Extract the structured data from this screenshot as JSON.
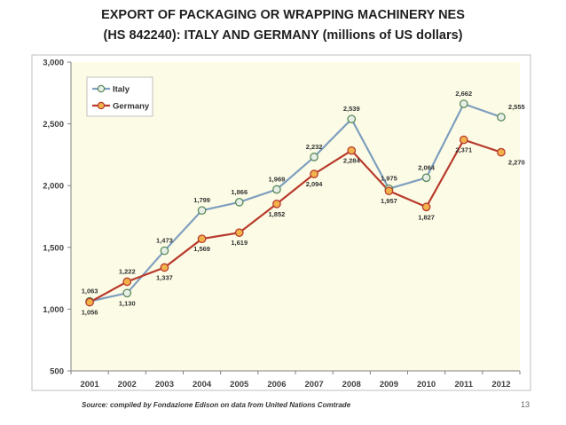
{
  "title_line1": "EXPORT OF PACKAGING OR WRAPPING MACHINERY NES",
  "title_line2": "(HS 842240): ITALY AND GERMANY (millions of US dollars)",
  "source": "Source: compiled by Fondazione Edison on data from United Nations Comtrade",
  "page_number": "13",
  "chart_data": {
    "type": "line",
    "categories": [
      "2001",
      "2002",
      "2003",
      "2004",
      "2005",
      "2006",
      "2007",
      "2008",
      "2009",
      "2010",
      "2011",
      "2012"
    ],
    "series": [
      {
        "name": "Italy",
        "color": "#7f9fbf",
        "values": [
          1063,
          1130,
          1473,
          1799,
          1866,
          1969,
          2232,
          2539,
          1975,
          2064,
          2662,
          2555
        ],
        "labels": [
          "1,063",
          "1,130",
          "1,473",
          "1,799",
          "1,866",
          "1,969",
          "2,232",
          "2,539",
          "1,975",
          "2,064",
          "2,662",
          "2,555"
        ]
      },
      {
        "name": "Germany",
        "color": "#b83a2c",
        "values": [
          1056,
          1222,
          1337,
          1569,
          1619,
          1852,
          2094,
          2284,
          1957,
          1827,
          2371,
          2270
        ],
        "labels": [
          "1,056",
          "1,222",
          "1,337",
          "1,569",
          "1,619",
          "1,852",
          "2,094",
          "2,284",
          "1,957",
          "1,827",
          "2,371",
          "2,270"
        ]
      }
    ],
    "y_ticks": [
      500,
      1000,
      1500,
      2000,
      2500,
      3000
    ],
    "y_tick_labels": [
      "500",
      "1,000",
      "1,500",
      "2,000",
      "2,500",
      "3,000"
    ],
    "ylim": [
      500,
      3000
    ],
    "grid": false,
    "legend_position": "top-left",
    "plot_background": "#fcfce6"
  }
}
